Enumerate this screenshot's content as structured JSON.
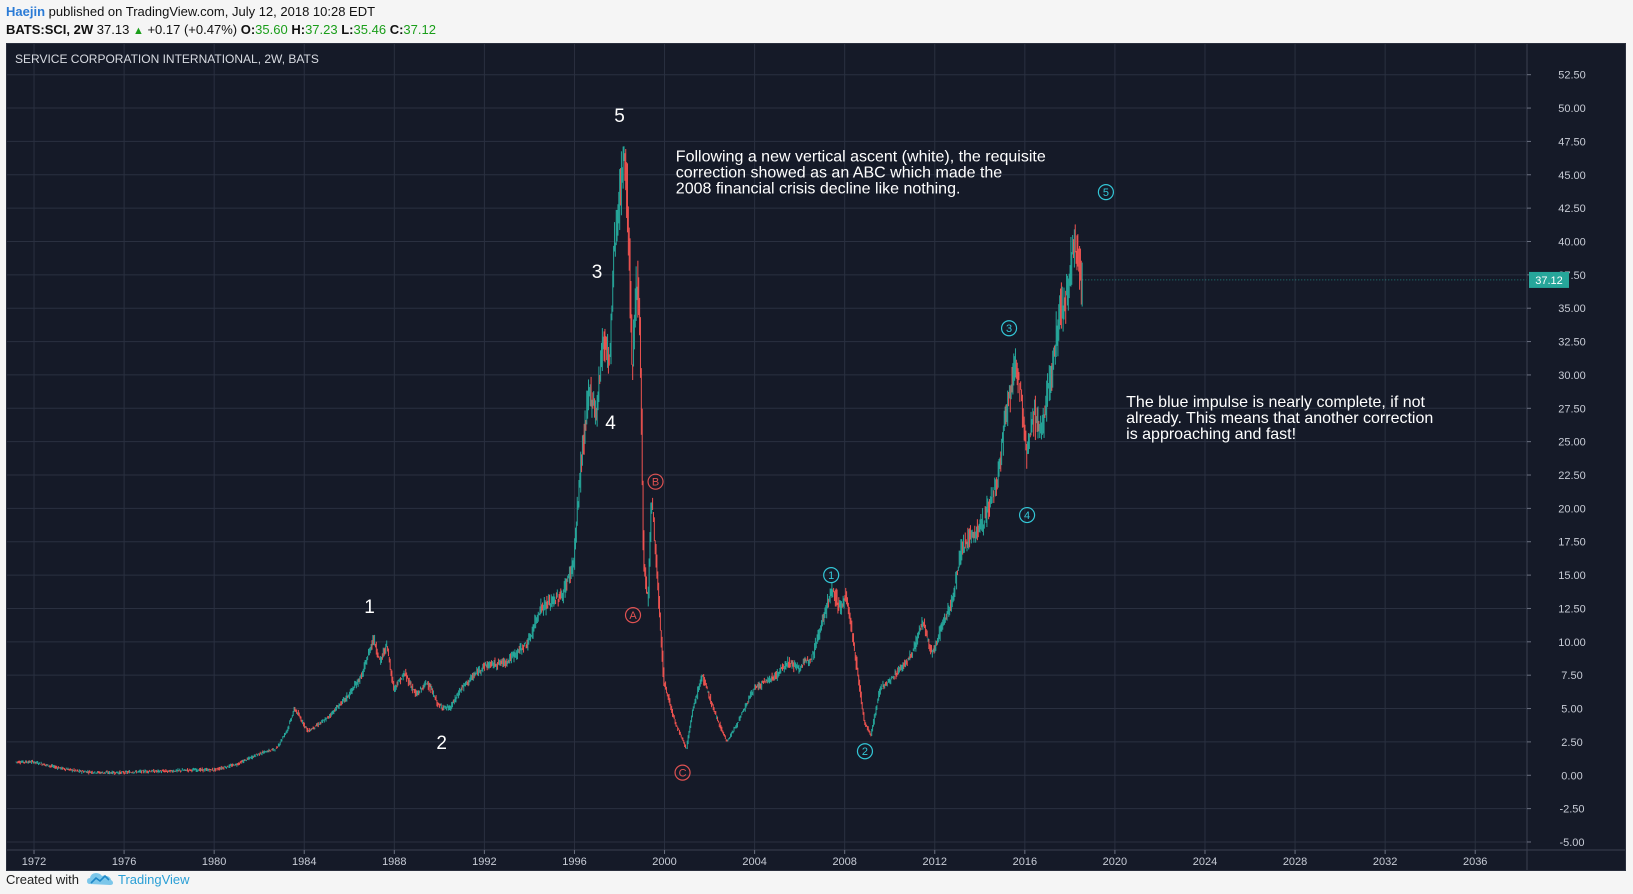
{
  "header": {
    "author": "Haejin",
    "published_text": "published on TradingView.com, July 12, 2018 10:28 EDT",
    "symbol": "BATS:SCI, 2W",
    "last": "37.13",
    "change": "+0.17 (+0.47%)",
    "o_label": "O:",
    "o_value": "35.60",
    "h_label": "H:",
    "h_value": "37.23",
    "l_label": "L:",
    "l_value": "35.46",
    "c_label": "C:",
    "c_value": "37.12"
  },
  "footer": {
    "created_with": "Created with",
    "brand": "TradingView"
  },
  "colors": {
    "background": "#151a28",
    "grid": "#2a3040",
    "up": "#26a69a",
    "down": "#ef5350",
    "price_badge": "#26a69a",
    "white_wave": "#ffffff",
    "red_wave": "#e05252",
    "blue_wave": "#33c6d6"
  },
  "chart_data": {
    "type": "candlestick",
    "title": "SERVICE CORPORATION INTERNATIONAL, 2W, BATS",
    "xlabel": "",
    "ylabel": "",
    "xlim": [
      1970.8,
      2038.3
    ],
    "ylim": [
      -7.1,
      54.8
    ],
    "grid": true,
    "x_ticks": [
      1972,
      1976,
      1980,
      1984,
      1988,
      1992,
      1996,
      2000,
      2004,
      2008,
      2012,
      2016,
      2020,
      2024,
      2028,
      2032,
      2036
    ],
    "y_ticks": [
      "52.50",
      "50.00",
      "47.50",
      "45.00",
      "42.50",
      "40.00",
      "37.50",
      "35.00",
      "32.50",
      "30.00",
      "27.50",
      "25.00",
      "22.50",
      "20.00",
      "17.50",
      "15.00",
      "12.50",
      "10.00",
      "7.50",
      "5.00",
      "2.50",
      "0.00",
      "-2.50",
      "-5.00"
    ],
    "current_price": {
      "value": 37.12,
      "label": "37.12"
    },
    "price_path": [
      [
        1971.2,
        1.0
      ],
      [
        1972.0,
        1.0
      ],
      [
        1973.0,
        0.6
      ],
      [
        1974.0,
        0.3
      ],
      [
        1975.0,
        0.2
      ],
      [
        1976.0,
        0.2
      ],
      [
        1977.0,
        0.3
      ],
      [
        1978.0,
        0.3
      ],
      [
        1979.0,
        0.4
      ],
      [
        1980.0,
        0.4
      ],
      [
        1981.0,
        0.8
      ],
      [
        1982.0,
        1.6
      ],
      [
        1982.8,
        2.0
      ],
      [
        1983.3,
        3.5
      ],
      [
        1983.6,
        5.0
      ],
      [
        1984.2,
        3.3
      ],
      [
        1985.0,
        4.2
      ],
      [
        1986.0,
        6.0
      ],
      [
        1986.6,
        7.5
      ],
      [
        1987.1,
        10.3
      ],
      [
        1987.4,
        8.5
      ],
      [
        1987.7,
        9.8
      ],
      [
        1988.0,
        6.5
      ],
      [
        1988.5,
        7.6
      ],
      [
        1989.0,
        6.0
      ],
      [
        1989.5,
        7.0
      ],
      [
        1990.0,
        5.2
      ],
      [
        1990.5,
        5.0
      ],
      [
        1991.0,
        6.5
      ],
      [
        1992.0,
        8.2
      ],
      [
        1993.0,
        8.5
      ],
      [
        1994.0,
        10.0
      ],
      [
        1994.5,
        12.5
      ],
      [
        1995.0,
        13.0
      ],
      [
        1995.5,
        13.5
      ],
      [
        1996.0,
        16.0
      ],
      [
        1996.3,
        23.0
      ],
      [
        1996.7,
        29.0
      ],
      [
        1997.0,
        27.0
      ],
      [
        1997.3,
        33.0
      ],
      [
        1997.6,
        31.0
      ],
      [
        1997.8,
        40.0
      ],
      [
        1998.1,
        44.0
      ],
      [
        1998.25,
        47.0
      ],
      [
        1998.45,
        40.0
      ],
      [
        1998.6,
        30.0
      ],
      [
        1998.8,
        38.0
      ],
      [
        1998.95,
        32.0
      ],
      [
        1999.1,
        16.0
      ],
      [
        1999.3,
        13.0
      ],
      [
        1999.45,
        21.0
      ],
      [
        1999.7,
        15.0
      ],
      [
        2000.0,
        7.0
      ],
      [
        2000.5,
        4.0
      ],
      [
        2001.0,
        2.0
      ],
      [
        2001.3,
        5.0
      ],
      [
        2001.7,
        7.5
      ],
      [
        2002.3,
        4.5
      ],
      [
        2002.8,
        2.5
      ],
      [
        2003.3,
        4.0
      ],
      [
        2004.0,
        6.5
      ],
      [
        2004.5,
        7.0
      ],
      [
        2005.0,
        7.5
      ],
      [
        2005.5,
        8.5
      ],
      [
        2006.0,
        8.0
      ],
      [
        2006.6,
        9.0
      ],
      [
        2007.1,
        12.0
      ],
      [
        2007.5,
        14.0
      ],
      [
        2007.8,
        12.5
      ],
      [
        2008.1,
        13.5
      ],
      [
        2008.5,
        9.0
      ],
      [
        2008.9,
        4.0
      ],
      [
        2009.2,
        3.0
      ],
      [
        2009.6,
        6.5
      ],
      [
        2010.0,
        7.0
      ],
      [
        2010.5,
        8.0
      ],
      [
        2011.0,
        9.0
      ],
      [
        2011.5,
        11.5
      ],
      [
        2011.9,
        9.0
      ],
      [
        2012.3,
        11.0
      ],
      [
        2012.8,
        13.0
      ],
      [
        2013.2,
        17.0
      ],
      [
        2013.7,
        18.0
      ],
      [
        2014.2,
        19.0
      ],
      [
        2014.8,
        22.0
      ],
      [
        2015.2,
        27.0
      ],
      [
        2015.6,
        31.0
      ],
      [
        2015.9,
        28.0
      ],
      [
        2016.1,
        24.0
      ],
      [
        2016.4,
        27.0
      ],
      [
        2016.8,
        26.0
      ],
      [
        2017.2,
        30.0
      ],
      [
        2017.6,
        35.0
      ],
      [
        2017.9,
        36.0
      ],
      [
        2018.2,
        40.0
      ],
      [
        2018.4,
        38.5
      ],
      [
        2018.55,
        37.1
      ]
    ],
    "annotations": [
      {
        "label": "1",
        "x": 1986.9,
        "y": 12.6,
        "wave": "white"
      },
      {
        "label": "2",
        "x": 1990.1,
        "y": 2.4,
        "wave": "white"
      },
      {
        "label": "3",
        "x": 1997.0,
        "y": 37.7,
        "wave": "white"
      },
      {
        "label": "4",
        "x": 1997.6,
        "y": 26.4,
        "wave": "white"
      },
      {
        "label": "5",
        "x": 1998.0,
        "y": 49.4,
        "wave": "white"
      },
      {
        "label": "A",
        "x": 1998.6,
        "y": 12.0,
        "wave": "red"
      },
      {
        "label": "B",
        "x": 1999.6,
        "y": 22.0,
        "wave": "red"
      },
      {
        "label": "C",
        "x": 2000.8,
        "y": 0.2,
        "wave": "red"
      },
      {
        "label": "1",
        "x": 2007.4,
        "y": 15.0,
        "wave": "blue"
      },
      {
        "label": "2",
        "x": 2008.9,
        "y": 1.8,
        "wave": "blue"
      },
      {
        "label": "3",
        "x": 2015.3,
        "y": 33.5,
        "wave": "blue"
      },
      {
        "label": "4",
        "x": 2016.1,
        "y": 19.5,
        "wave": "blue"
      },
      {
        "label": "5",
        "x": 2019.6,
        "y": 43.7,
        "wave": "blue"
      }
    ],
    "notes": [
      {
        "lines": [
          "Following a new vertical ascent (white), the requisite",
          "correction showed as an ABC which made the",
          "2008 financial crisis decline like nothing."
        ],
        "x": 2000.5,
        "y": 46.0
      },
      {
        "lines": [
          "The blue impulse is nearly complete, if not",
          "already. This means that another correction",
          "is approaching and fast!"
        ],
        "x": 2020.5,
        "y": 27.6
      }
    ]
  }
}
